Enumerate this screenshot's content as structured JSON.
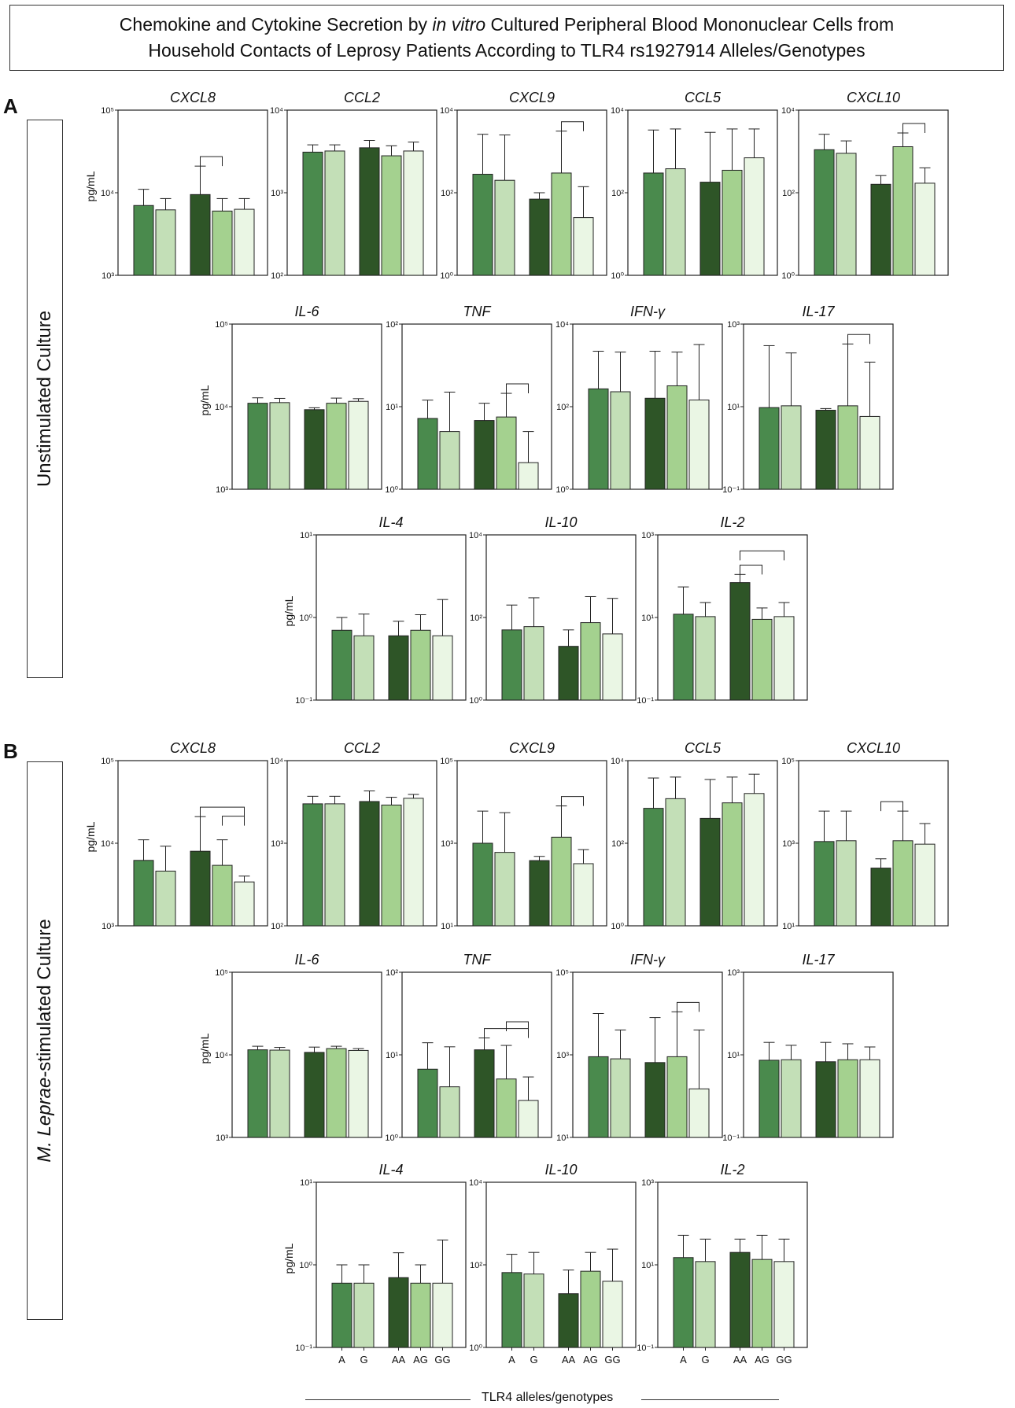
{
  "title": {
    "line1_pre": "Chemokine and Cytokine Secretion by ",
    "line1_italic": "in vitro",
    "line1_post": " Cultured Peripheral Blood Mononuclear Cells from",
    "line2": "Household Contacts of Leprosy Patients According to TLR4 rs1927914 Alleles/Genotypes"
  },
  "panels": {
    "A": {
      "letter": "A",
      "side_label": "Unstimulated Culture"
    },
    "B": {
      "letter": "B",
      "side_label_italic": "M. Leprae",
      "side_label_rest": "-stimulated Culture"
    }
  },
  "colors": [
    "#4a8a4d",
    "#c3dfb7",
    "#2e5527",
    "#a4d18f",
    "#eaf6e4"
  ],
  "footer": {
    "x_title": "TLR4 alleles/genotypes"
  },
  "chart_data": [
    {
      "type": "bar",
      "panel": "A",
      "title": "CXCL8",
      "ylabel": "pg/mL",
      "yscale": "log",
      "ylim": [
        1000,
        100000
      ],
      "tick_exponents": [
        3,
        4,
        5
      ],
      "categories": [
        "A",
        "G",
        "AA",
        "AG",
        "GG"
      ],
      "values": [
        7000,
        6200,
        9500,
        6000,
        6300
      ],
      "errors": [
        11000,
        8500,
        21000,
        8500,
        8500
      ],
      "significance": [
        [
          2,
          3
        ]
      ],
      "x_tick_labels": false
    },
    {
      "type": "bar",
      "panel": "A",
      "title": "CCL2",
      "ylabel": "",
      "yscale": "log",
      "ylim": [
        100,
        10000
      ],
      "tick_exponents": [
        2,
        3,
        4
      ],
      "categories": [
        "A",
        "G",
        "AA",
        "AG",
        "GG"
      ],
      "values": [
        3100,
        3200,
        3500,
        2800,
        3200
      ],
      "errors": [
        3800,
        3800,
        4300,
        3700,
        4100
      ],
      "significance": [],
      "x_tick_labels": false
    },
    {
      "type": "bar",
      "panel": "A",
      "title": "CXCL9",
      "ylabel": "",
      "yscale": "log",
      "ylim": [
        1,
        10000
      ],
      "tick_exponents": [
        0,
        2,
        4
      ],
      "categories": [
        "A",
        "G",
        "AA",
        "AG",
        "GG"
      ],
      "values": [
        280,
        200,
        70,
        300,
        25
      ],
      "errors": [
        2600,
        2500,
        100,
        3100,
        140
      ],
      "significance": [
        [
          3,
          4
        ]
      ],
      "x_tick_labels": false
    },
    {
      "type": "bar",
      "panel": "A",
      "title": "CCL5",
      "ylabel": "",
      "yscale": "log",
      "ylim": [
        1,
        10000
      ],
      "tick_exponents": [
        0,
        2,
        4
      ],
      "categories": [
        "A",
        "G",
        "AA",
        "AG",
        "GG"
      ],
      "values": [
        300,
        380,
        180,
        350,
        700
      ],
      "errors": [
        3300,
        3500,
        2900,
        3500,
        3500
      ],
      "significance": [],
      "x_tick_labels": false
    },
    {
      "type": "bar",
      "panel": "A",
      "title": "CXCL10",
      "ylabel": "",
      "yscale": "log",
      "ylim": [
        1,
        10000
      ],
      "tick_exponents": [
        0,
        2,
        4
      ],
      "categories": [
        "A",
        "G",
        "AA",
        "AG",
        "GG"
      ],
      "values": [
        1100,
        900,
        160,
        1300,
        170
      ],
      "errors": [
        2600,
        1800,
        260,
        2800,
        400
      ],
      "significance": [
        [
          3,
          4
        ]
      ],
      "x_tick_labels": false
    },
    {
      "type": "bar",
      "panel": "A",
      "title": "IL-6",
      "ylabel": "pg/mL",
      "yscale": "log",
      "ylim": [
        1000,
        100000
      ],
      "tick_exponents": [
        3,
        4,
        5
      ],
      "categories": [
        "A",
        "G",
        "AA",
        "AG",
        "GG"
      ],
      "values": [
        11000,
        11200,
        9200,
        11000,
        11600
      ],
      "errors": [
        12800,
        12600,
        9700,
        12700,
        12500
      ],
      "significance": [],
      "x_tick_labels": false
    },
    {
      "type": "bar",
      "panel": "A",
      "title": "TNF",
      "ylabel": "",
      "yscale": "log",
      "ylim": [
        1,
        100
      ],
      "tick_exponents": [
        0,
        1,
        2
      ],
      "categories": [
        "A",
        "G",
        "AA",
        "AG",
        "GG"
      ],
      "values": [
        7.2,
        5,
        6.8,
        7.5,
        2.1
      ],
      "errors": [
        12,
        15,
        11,
        14.5,
        5
      ],
      "significance": [
        [
          3,
          4
        ]
      ],
      "x_tick_labels": false
    },
    {
      "type": "bar",
      "panel": "A",
      "title": "IFN-γ",
      "ylabel": "",
      "yscale": "log",
      "ylim": [
        1,
        10000
      ],
      "tick_exponents": [
        0,
        2,
        4
      ],
      "categories": [
        "A",
        "G",
        "AA",
        "AG",
        "GG"
      ],
      "values": [
        270,
        230,
        160,
        320,
        145
      ],
      "errors": [
        2200,
        2100,
        2200,
        2100,
        3200
      ],
      "significance": [],
      "x_tick_labels": false
    },
    {
      "type": "bar",
      "panel": "A",
      "title": "IL-17",
      "ylabel": "",
      "yscale": "log",
      "ylim": [
        0.1,
        1000
      ],
      "tick_exponents": [
        -1,
        1,
        3
      ],
      "categories": [
        "A",
        "G",
        "AA",
        "AG",
        "GG"
      ],
      "values": [
        9.5,
        10.5,
        8.2,
        10.5,
        5.8
      ],
      "errors": [
        300,
        200,
        9,
        330,
        120
      ],
      "significance": [
        [
          3,
          4
        ]
      ],
      "x_tick_labels": false
    },
    {
      "type": "bar",
      "panel": "A",
      "title": "IL-4",
      "ylabel": "pg/mL",
      "yscale": "log",
      "ylim": [
        0.1,
        10
      ],
      "tick_exponents": [
        -1,
        0,
        1
      ],
      "categories": [
        "A",
        "G",
        "AA",
        "AG",
        "GG"
      ],
      "values": [
        0.7,
        0.6,
        0.6,
        0.7,
        0.6
      ],
      "errors": [
        1.0,
        1.1,
        0.9,
        1.08,
        1.65
      ],
      "significance": [],
      "x_tick_labels": false
    },
    {
      "type": "bar",
      "panel": "A",
      "title": "IL-10",
      "ylabel": "",
      "yscale": "log",
      "ylim": [
        1,
        10000
      ],
      "tick_exponents": [
        0,
        2,
        4
      ],
      "categories": [
        "A",
        "G",
        "AA",
        "AG",
        "GG"
      ],
      "values": [
        50,
        60,
        20,
        75,
        40
      ],
      "errors": [
        200,
        300,
        50,
        320,
        290
      ],
      "significance": [],
      "x_tick_labels": false
    },
    {
      "type": "bar",
      "panel": "A",
      "title": "IL-2",
      "ylabel": "",
      "yscale": "log",
      "ylim": [
        0.1,
        1000
      ],
      "tick_exponents": [
        -1,
        1,
        3
      ],
      "categories": [
        "A",
        "G",
        "AA",
        "AG",
        "GG"
      ],
      "values": [
        12,
        10.5,
        70,
        9,
        10.5
      ],
      "errors": [
        55,
        23,
        110,
        17,
        23
      ],
      "significance": [
        [
          2,
          3
        ],
        [
          2,
          4
        ]
      ],
      "x_tick_labels": false
    },
    {
      "type": "bar",
      "panel": "B",
      "title": "CXCL8",
      "ylabel": "pg/mL",
      "yscale": "log",
      "ylim": [
        1000,
        100000
      ],
      "tick_exponents": [
        3,
        4,
        5
      ],
      "categories": [
        "A",
        "G",
        "AA",
        "AG",
        "GG"
      ],
      "values": [
        6200,
        4600,
        8000,
        5400,
        3400
      ],
      "errors": [
        11000,
        9200,
        21000,
        11000,
        4000
      ],
      "significance": [
        [
          2,
          4
        ],
        [
          3,
          4
        ]
      ],
      "x_tick_labels": false
    },
    {
      "type": "bar",
      "panel": "B",
      "title": "CCL2",
      "ylabel": "",
      "yscale": "log",
      "ylim": [
        100,
        10000
      ],
      "tick_exponents": [
        2,
        3,
        4
      ],
      "categories": [
        "A",
        "G",
        "AA",
        "AG",
        "GG"
      ],
      "values": [
        3000,
        3000,
        3200,
        2900,
        3500
      ],
      "errors": [
        3700,
        3700,
        4300,
        3600,
        3900
      ],
      "significance": [],
      "x_tick_labels": false
    },
    {
      "type": "bar",
      "panel": "B",
      "title": "CXCL9",
      "ylabel": "",
      "yscale": "log",
      "ylim": [
        10,
        100000
      ],
      "tick_exponents": [
        1,
        3,
        5
      ],
      "categories": [
        "A",
        "G",
        "AA",
        "AG",
        "GG"
      ],
      "values": [
        1000,
        600,
        380,
        1400,
        320
      ],
      "errors": [
        6000,
        5500,
        480,
        8000,
        700
      ],
      "significance": [
        [
          3,
          4
        ]
      ],
      "x_tick_labels": false
    },
    {
      "type": "bar",
      "panel": "B",
      "title": "CCL5",
      "ylabel": "",
      "yscale": "log",
      "ylim": [
        1,
        10000
      ],
      "tick_exponents": [
        0,
        2,
        4
      ],
      "categories": [
        "A",
        "G",
        "AA",
        "AG",
        "GG"
      ],
      "values": [
        700,
        1200,
        400,
        950,
        1600
      ],
      "errors": [
        3800,
        4000,
        3500,
        4000,
        4700
      ],
      "significance": [],
      "x_tick_labels": false
    },
    {
      "type": "bar",
      "panel": "B",
      "title": "CXCL10",
      "ylabel": "",
      "yscale": "log",
      "ylim": [
        10,
        100000
      ],
      "tick_exponents": [
        1,
        3,
        5
      ],
      "categories": [
        "A",
        "G",
        "AA",
        "AG",
        "GG"
      ],
      "values": [
        1100,
        1150,
        250,
        1150,
        950
      ],
      "errors": [
        6000,
        6000,
        420,
        6000,
        3000
      ],
      "significance": [
        [
          2,
          3
        ]
      ],
      "x_tick_labels": false
    },
    {
      "type": "bar",
      "panel": "B",
      "title": "IL-6",
      "ylabel": "pg/mL",
      "yscale": "log",
      "ylim": [
        1000,
        100000
      ],
      "tick_exponents": [
        3,
        4,
        5
      ],
      "categories": [
        "A",
        "G",
        "AA",
        "AG",
        "GG"
      ],
      "values": [
        11500,
        11400,
        10700,
        11900,
        11300
      ],
      "errors": [
        12700,
        12300,
        12400,
        12700,
        11900
      ],
      "significance": [],
      "x_tick_labels": false
    },
    {
      "type": "bar",
      "panel": "B",
      "title": "TNF",
      "ylabel": "",
      "yscale": "log",
      "ylim": [
        1,
        100
      ],
      "tick_exponents": [
        0,
        1,
        2
      ],
      "categories": [
        "A",
        "G",
        "AA",
        "AG",
        "GG"
      ],
      "values": [
        6.7,
        4.1,
        11.5,
        5.1,
        2.8
      ],
      "errors": [
        14,
        12.5,
        16,
        13,
        5.4
      ],
      "significance": [
        [
          2,
          4
        ],
        [
          3,
          4
        ]
      ],
      "x_tick_labels": false
    },
    {
      "type": "bar",
      "panel": "B",
      "title": "IFN-γ",
      "ylabel": "",
      "yscale": "log",
      "ylim": [
        10,
        100000
      ],
      "tick_exponents": [
        1,
        3,
        5
      ],
      "categories": [
        "A",
        "G",
        "AA",
        "AG",
        "GG"
      ],
      "values": [
        900,
        800,
        650,
        900,
        150
      ],
      "errors": [
        10000,
        4000,
        8000,
        11000,
        4000
      ],
      "significance": [
        [
          3,
          4
        ]
      ],
      "x_tick_labels": false
    },
    {
      "type": "bar",
      "panel": "B",
      "title": "IL-17",
      "ylabel": "",
      "yscale": "log",
      "ylim": [
        0.1,
        1000
      ],
      "tick_exponents": [
        -1,
        1,
        3
      ],
      "categories": [
        "A",
        "G",
        "AA",
        "AG",
        "GG"
      ],
      "values": [
        7.4,
        7.6,
        6.8,
        7.6,
        7.6
      ],
      "errors": [
        20,
        17,
        20,
        18.5,
        15.5
      ],
      "significance": [],
      "x_tick_labels": false
    },
    {
      "type": "bar",
      "panel": "B",
      "title": "IL-4",
      "ylabel": "pg/mL",
      "yscale": "log",
      "ylim": [
        0.1,
        10
      ],
      "tick_exponents": [
        -1,
        0,
        1
      ],
      "categories": [
        "A",
        "G",
        "AA",
        "AG",
        "GG"
      ],
      "values": [
        0.6,
        0.6,
        0.7,
        0.6,
        0.6
      ],
      "errors": [
        1.0,
        1.0,
        1.4,
        1.0,
        2.0
      ],
      "significance": [],
      "x_tick_labels": true
    },
    {
      "type": "bar",
      "panel": "B",
      "title": "IL-10",
      "ylabel": "",
      "yscale": "log",
      "ylim": [
        1,
        10000
      ],
      "tick_exponents": [
        0,
        2,
        4
      ],
      "categories": [
        "A",
        "G",
        "AA",
        "AG",
        "GG"
      ],
      "values": [
        65,
        60,
        20,
        70,
        40
      ],
      "errors": [
        180,
        200,
        75,
        200,
        240
      ],
      "significance": [],
      "x_tick_labels": true
    },
    {
      "type": "bar",
      "panel": "B",
      "title": "IL-2",
      "ylabel": "",
      "yscale": "log",
      "ylim": [
        0.1,
        1000
      ],
      "tick_exponents": [
        -1,
        1,
        3
      ],
      "categories": [
        "A",
        "G",
        "AA",
        "AG",
        "GG"
      ],
      "values": [
        15,
        12,
        20,
        13.5,
        12
      ],
      "errors": [
        52,
        42,
        42,
        52,
        42
      ],
      "significance": [],
      "x_tick_labels": true
    }
  ]
}
